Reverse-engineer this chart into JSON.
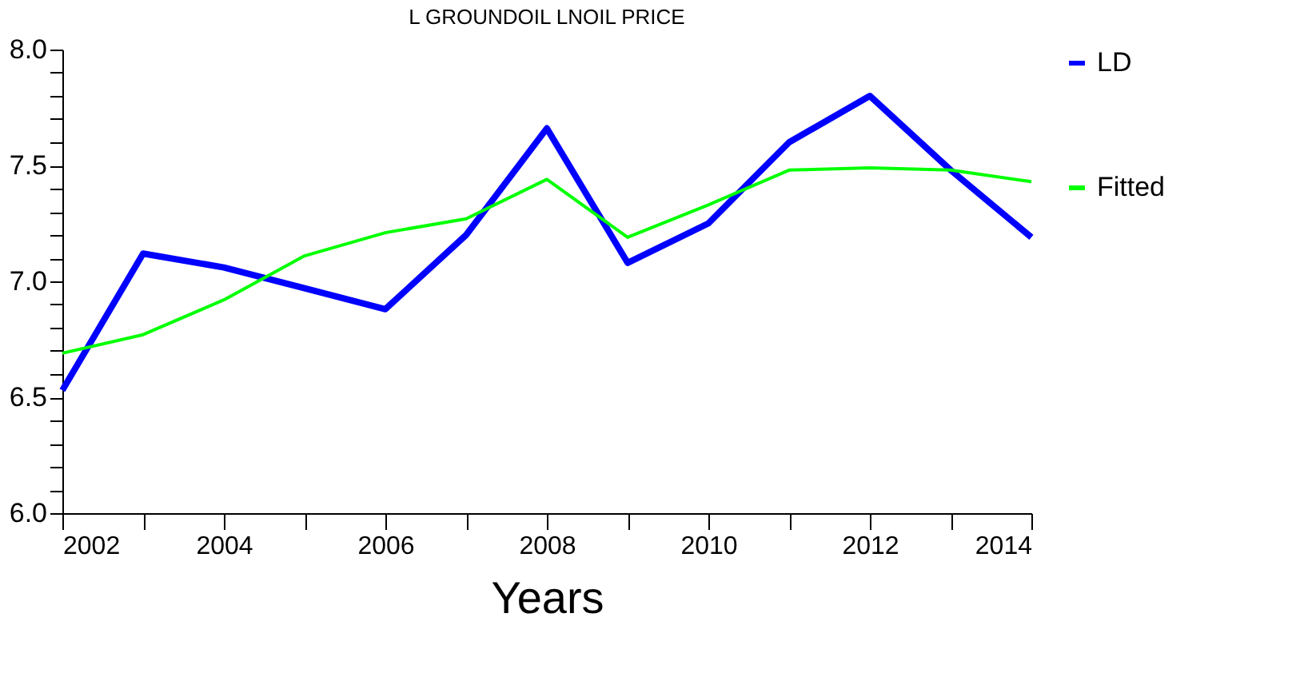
{
  "chart_data": {
    "type": "line",
    "title": "L GROUNDOIL LNOIL  PRICE",
    "xlabel": "Years",
    "x": [
      2002,
      2003,
      2004,
      2005,
      2006,
      2007,
      2008,
      2009,
      2010,
      2011,
      2012,
      2013,
      2014
    ],
    "series": [
      {
        "name": "LD",
        "color": "#0000ff",
        "values": [
          6.53,
          7.12,
          7.06,
          6.97,
          6.88,
          7.2,
          7.66,
          7.08,
          7.25,
          7.6,
          7.8,
          7.48,
          7.19
        ]
      },
      {
        "name": "Fitted",
        "color": "#00ff00",
        "values": [
          6.69,
          6.77,
          6.92,
          7.11,
          7.21,
          7.27,
          7.44,
          7.19,
          7.33,
          7.48,
          7.49,
          7.48,
          7.43
        ]
      }
    ],
    "xlim": [
      2002,
      2014
    ],
    "xticks": [
      2002,
      {
        "value": 2003,
        "label": null
      },
      2004,
      {
        "value": 2005,
        "label": null
      },
      2006,
      {
        "value": 2007,
        "label": null
      },
      2008,
      {
        "value": 2009,
        "label": null
      },
      2010,
      {
        "value": 2011,
        "label": null
      },
      2012,
      {
        "value": 2013,
        "label": null
      },
      2014
    ],
    "ylim": [
      6.0,
      8.0
    ],
    "yticks": [
      {
        "value": 6.0,
        "label": "6.0"
      },
      {
        "value": 6.1,
        "label": null
      },
      {
        "value": 6.2,
        "label": null
      },
      {
        "value": 6.3,
        "label": null
      },
      {
        "value": 6.4,
        "label": null
      },
      {
        "value": 6.5,
        "label": "6.5"
      },
      {
        "value": 6.6,
        "label": null
      },
      {
        "value": 6.7,
        "label": null
      },
      {
        "value": 6.8,
        "label": null
      },
      {
        "value": 6.9,
        "label": null
      },
      {
        "value": 7.0,
        "label": "7.0"
      },
      {
        "value": 7.1,
        "label": null
      },
      {
        "value": 7.2,
        "label": null
      },
      {
        "value": 7.3,
        "label": null
      },
      {
        "value": 7.4,
        "label": null
      },
      {
        "value": 7.5,
        "label": "7.5"
      },
      {
        "value": 7.6,
        "label": null
      },
      {
        "value": 7.7,
        "label": null
      },
      {
        "value": 7.8,
        "label": null
      },
      {
        "value": 7.9,
        "label": null
      },
      {
        "value": 8.0,
        "label": "8.0"
      }
    ],
    "grid": false,
    "legend": "right",
    "marker": "none",
    "line_style": "solid"
  }
}
